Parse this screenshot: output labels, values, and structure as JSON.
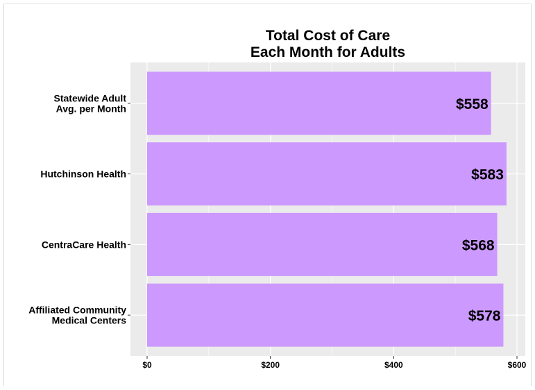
{
  "chart_data": {
    "type": "bar",
    "orientation": "horizontal",
    "title_lines": [
      "Total Cost of Care",
      "Each Month for Adults"
    ],
    "categories": [
      [
        "Statewide Adult",
        "Avg. per Month"
      ],
      [
        "Hutchinson Health"
      ],
      [
        "CentraCare Health"
      ],
      [
        "Affiliated Community",
        "Medical Centers"
      ]
    ],
    "values": [
      558,
      583,
      568,
      578
    ],
    "value_labels": [
      "$558",
      "$583",
      "$568",
      "$578"
    ],
    "x_ticks": [
      0,
      200,
      400,
      600
    ],
    "x_tick_labels": [
      "$0",
      "$200",
      "$400",
      "$600"
    ],
    "xlim": [
      0,
      600
    ],
    "grid": true,
    "colors": {
      "bar": "#cc99ff",
      "panel": "#ebebeb",
      "grid": "#ffffff"
    }
  }
}
